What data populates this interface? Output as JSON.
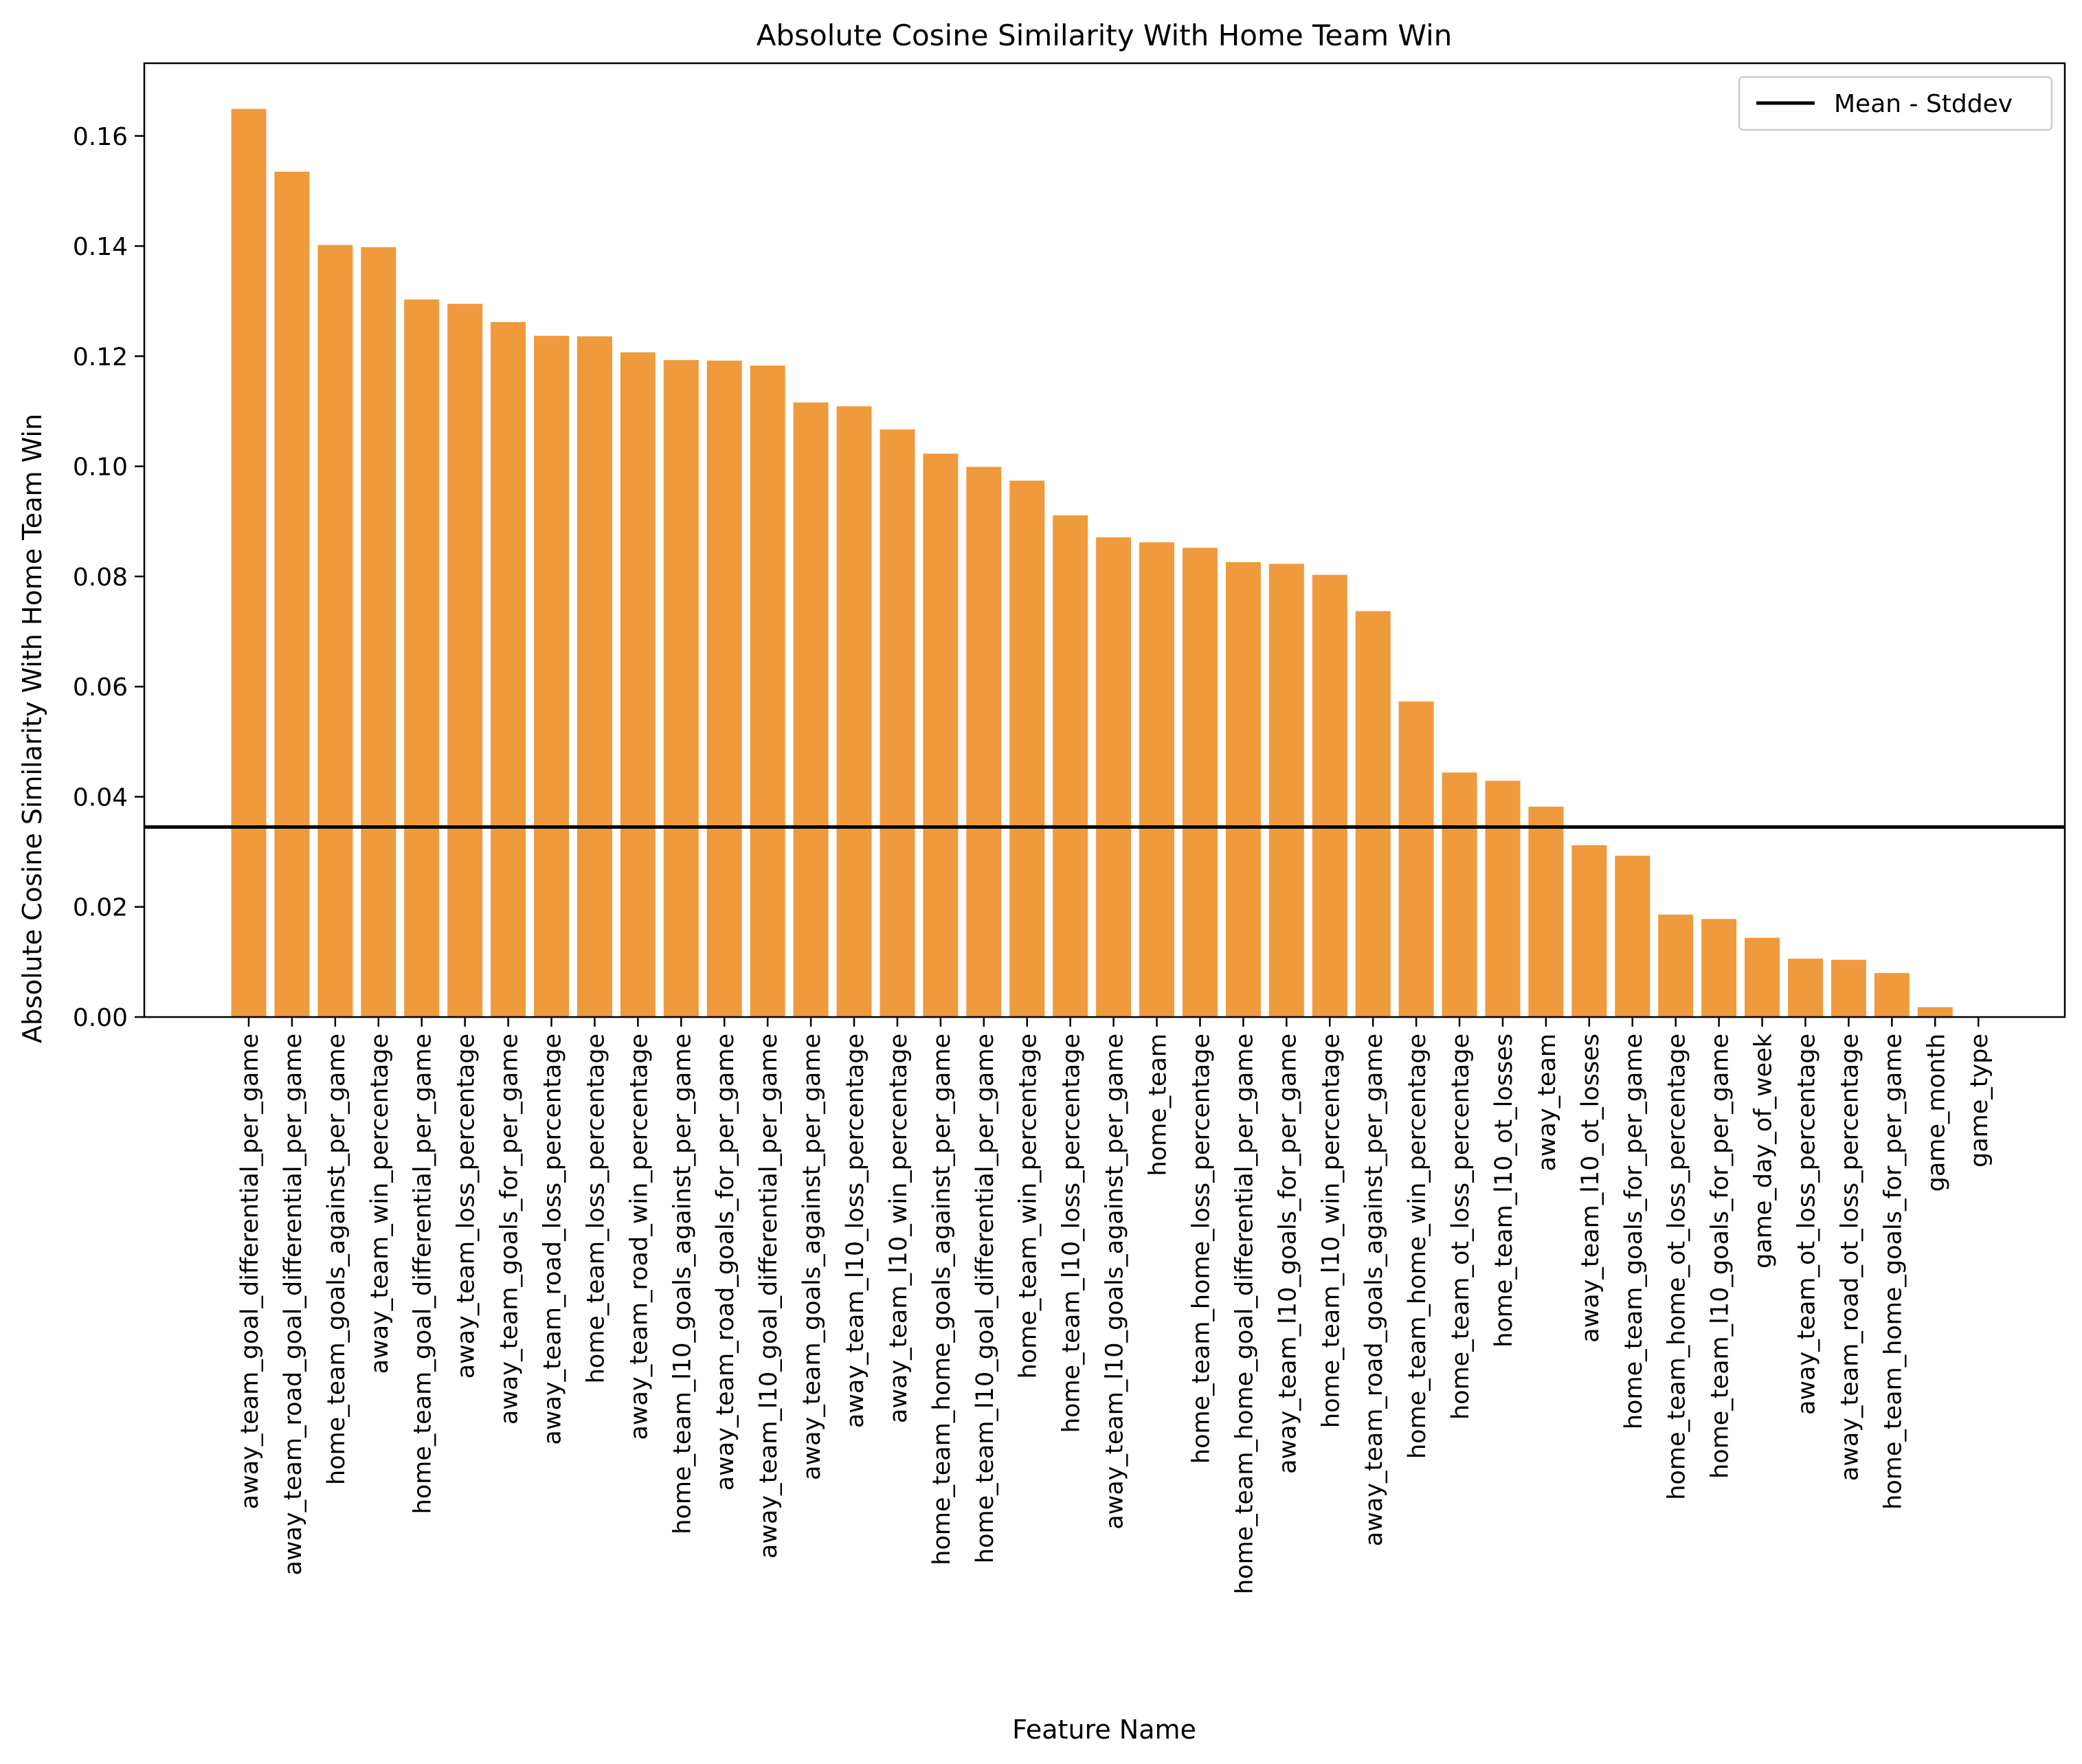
{
  "chart_data": {
    "type": "bar",
    "title": "Absolute Cosine Similarity With Home Team Win",
    "xlabel": "Feature Name",
    "ylabel": "Absolute Cosine Similarity With Home Team Win",
    "ylim": [
      0,
      0.1732
    ],
    "yticks": [
      "0.00",
      "0.02",
      "0.04",
      "0.06",
      "0.08",
      "0.10",
      "0.12",
      "0.14",
      "0.16"
    ],
    "grid": false,
    "legend": {
      "placement": "top-right",
      "entries": [
        "Mean - Stddev"
      ]
    },
    "bar_color": "#ef9a3d",
    "reference_line": {
      "name": "Mean - Stddev",
      "value": 0.0345,
      "color": "#000000"
    },
    "categories": [
      "away_team_goal_differential_per_game",
      "away_team_road_goal_differential_per_game",
      "home_team_goals_against_per_game",
      "away_team_win_percentage",
      "home_team_goal_differential_per_game",
      "away_team_loss_percentage",
      "away_team_goals_for_per_game",
      "away_team_road_loss_percentage",
      "home_team_loss_percentage",
      "away_team_road_win_percentage",
      "home_team_l10_goals_against_per_game",
      "away_team_road_goals_for_per_game",
      "away_team_l10_goal_differential_per_game",
      "away_team_goals_against_per_game",
      "away_team_l10_loss_percentage",
      "away_team_l10_win_percentage",
      "home_team_home_goals_against_per_game",
      "home_team_l10_goal_differential_per_game",
      "home_team_win_percentage",
      "home_team_l10_loss_percentage",
      "away_team_l10_goals_against_per_game",
      "home_team",
      "home_team_home_loss_percentage",
      "home_team_home_goal_differential_per_game",
      "away_team_l10_goals_for_per_game",
      "home_team_l10_win_percentage",
      "away_team_road_goals_against_per_game",
      "home_team_home_win_percentage",
      "home_team_ot_loss_percentage",
      "home_team_l10_ot_losses",
      "away_team",
      "away_team_l10_ot_losses",
      "home_team_goals_for_per_game",
      "home_team_home_ot_loss_percentage",
      "home_team_l10_goals_for_per_game",
      "game_day_of_week",
      "away_team_ot_loss_percentage",
      "away_team_road_ot_loss_percentage",
      "home_team_home_goals_for_per_game",
      "game_month",
      "game_type"
    ],
    "values": [
      0.1649,
      0.1535,
      0.1402,
      0.1398,
      0.1303,
      0.1295,
      0.1262,
      0.1237,
      0.1236,
      0.1207,
      0.1193,
      0.1192,
      0.1183,
      0.1116,
      0.1109,
      0.1067,
      0.1023,
      0.0999,
      0.0974,
      0.0911,
      0.0871,
      0.0862,
      0.0852,
      0.0826,
      0.0823,
      0.0803,
      0.0737,
      0.0573,
      0.0444,
      0.0429,
      0.0382,
      0.0312,
      0.0293,
      0.0186,
      0.0178,
      0.0144,
      0.0106,
      0.0104,
      0.008,
      0.0018,
      0.0
    ]
  }
}
